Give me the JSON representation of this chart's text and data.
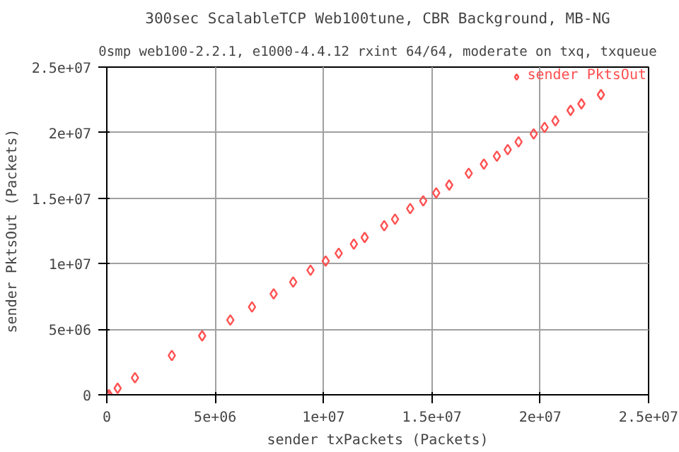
{
  "chart_data": {
    "type": "scatter",
    "title": "300sec ScalableTCP Web100tune, CBR Background, MB-NG",
    "subtitle": "0smp web100-2.2.1, e1000-4.4.12 rxint 64/64, moderate on txq, txqueue",
    "xlabel": "sender txPackets (Packets)",
    "ylabel": "sender PktsOut (Packets)",
    "x": [
      0,
      100000,
      500000,
      1300000,
      3000000,
      4400000,
      5700000,
      6700000,
      7700000,
      8600000,
      9400000,
      10100000,
      10700000,
      11400000,
      11900000,
      12800000,
      13300000,
      14000000,
      14600000,
      15200000,
      15800000,
      16700000,
      17400000,
      18000000,
      18500000,
      19000000,
      19700000,
      20200000,
      20700000,
      21400000,
      21900000,
      22800000
    ],
    "series": [
      {
        "name": "sender PktsOut",
        "color": "#ff5050",
        "values": [
          0,
          0,
          500000,
          1300000,
          3000000,
          4500000,
          5700000,
          6700000,
          7700000,
          8600000,
          9500000,
          10200000,
          10800000,
          11500000,
          12000000,
          12900000,
          13400000,
          14200000,
          14800000,
          15400000,
          16000000,
          16900000,
          17600000,
          18200000,
          18700000,
          19300000,
          19900000,
          20400000,
          20900000,
          21700000,
          22200000,
          22900000
        ]
      }
    ],
    "xlim": [
      0,
      25000000
    ],
    "ylim": [
      0,
      25000000
    ],
    "xticks": [
      0,
      {
        "value": 5000000,
        "label": "5e+06"
      },
      {
        "value": 10000000,
        "label": "1e+07"
      },
      {
        "value": 15000000,
        "label": "1.5e+07"
      },
      {
        "value": 20000000,
        "label": "2e+07"
      },
      {
        "value": 25000000,
        "label": "2.5e+07"
      }
    ],
    "yticks": [
      0,
      {
        "value": 5000000,
        "label": "5e+06"
      },
      {
        "value": 10000000,
        "label": "1e+07"
      },
      {
        "value": 15000000,
        "label": "1.5e+07"
      },
      {
        "value": 20000000,
        "label": "2e+07"
      },
      {
        "value": 25000000,
        "label": "2.5e+07"
      }
    ],
    "grid": true,
    "legend": "top right",
    "marker": "diamond"
  }
}
